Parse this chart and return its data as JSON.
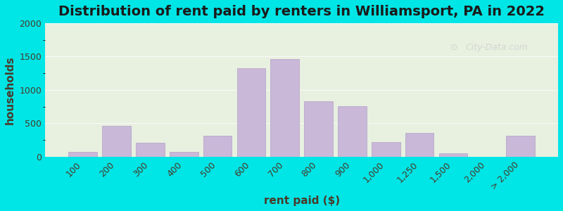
{
  "title": "Distribution of rent paid by renters in Williamsport, PA in 2022",
  "xlabel": "rent paid ($)",
  "ylabel": "households",
  "bar_color": "#c9b8d8",
  "bar_edge_color": "#b0a0c8",
  "background_outer": "#00e5e5",
  "background_inner_top": "#e8f0e0",
  "background_inner_bottom": "#d8e8d0",
  "ylim": [
    0,
    2000
  ],
  "yticks": [
    0,
    500,
    1000,
    1500,
    2000
  ],
  "categories": [
    "100",
    "200",
    "300",
    "400",
    "500",
    "600",
    "700",
    "800",
    "900",
    "1,000",
    "1,250",
    "1,500",
    "2,000",
    "> 2,000"
  ],
  "values": [
    75,
    460,
    210,
    75,
    310,
    1330,
    1460,
    830,
    760,
    215,
    355,
    50,
    0,
    310
  ],
  "title_fontsize": 14,
  "axis_label_fontsize": 11,
  "tick_fontsize": 9,
  "watermark_text": "City-Data.com"
}
